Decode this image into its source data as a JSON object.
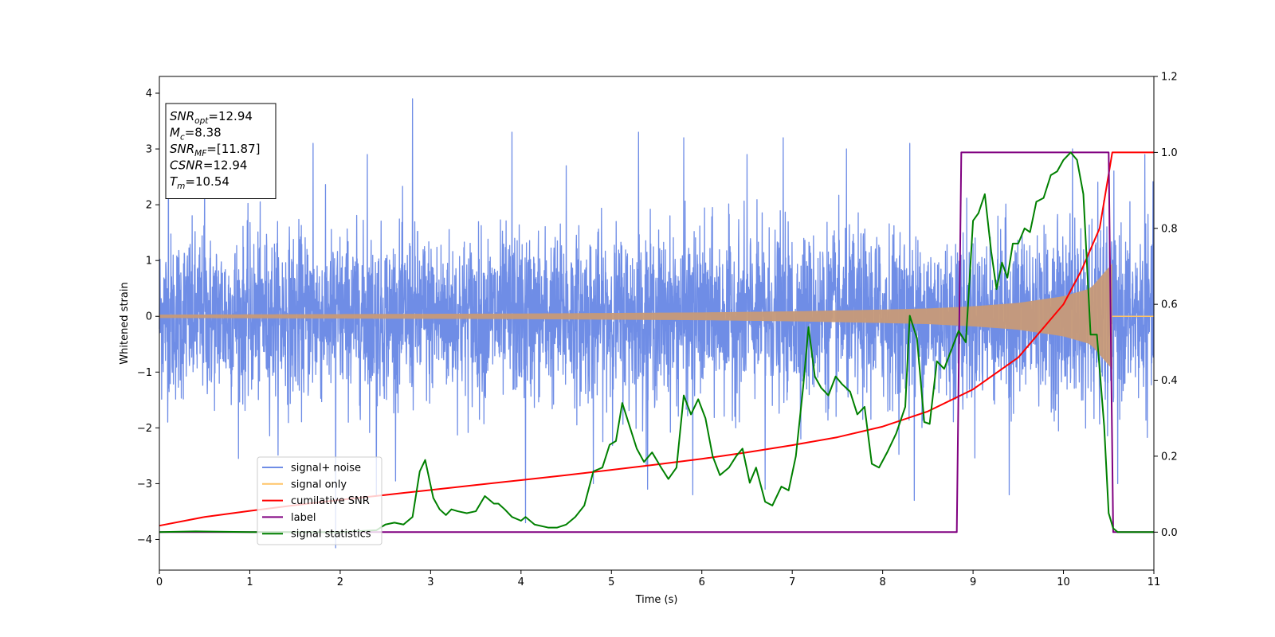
{
  "chart_data": {
    "type": "line",
    "title": "",
    "xlabel": "Time (s)",
    "ylabel": "Whitened strain",
    "xlim": [
      0,
      11
    ],
    "ylim": [
      -4.55,
      4.3
    ],
    "y2lim": [
      -0.1,
      1.2
    ],
    "xticks": [
      "0",
      "1",
      "2",
      "3",
      "4",
      "5",
      "6",
      "7",
      "8",
      "9",
      "10",
      "11"
    ],
    "yticks": [
      "4",
      "3",
      "2",
      "1",
      "0",
      "−1",
      "−2",
      "−3",
      "−4"
    ],
    "y2ticks": [
      "1.2",
      "1.0",
      "0.8",
      "0.6",
      "0.4",
      "0.2",
      "0.0"
    ],
    "grid": false,
    "legend_position": "lower-left",
    "annotation": {
      "lines": [
        {
          "base": "SNR",
          "sub": "opt",
          "value": "=12.94"
        },
        {
          "base": "M",
          "sub": "c",
          "value": "=8.38"
        },
        {
          "base": "SNR",
          "sub": "MF",
          "value": "=[11.87]"
        },
        {
          "base": "CSNR",
          "sub": "",
          "value": "=12.94"
        },
        {
          "base": "T",
          "sub": "m",
          "value": "=10.54"
        }
      ]
    },
    "series": [
      {
        "name": "signal+ noise",
        "color": "#6f8de6",
        "axis": "left",
        "kind": "noise",
        "envelope_typical": 1.9,
        "peaks": [
          [
            0.1,
            3.7
          ],
          [
            0.5,
            2.8
          ],
          [
            1.7,
            3.1
          ],
          [
            2.3,
            2.9
          ],
          [
            2.8,
            3.9
          ],
          [
            3.9,
            3.3
          ],
          [
            4.5,
            2.7
          ],
          [
            5.3,
            3.3
          ],
          [
            5.8,
            3.2
          ],
          [
            6.5,
            2.9
          ],
          [
            6.9,
            3.2
          ],
          [
            7.6,
            3.0
          ],
          [
            8.3,
            3.1
          ],
          [
            9.4,
            3.6
          ],
          [
            10.1,
            3.0
          ],
          [
            10.9,
            2.9
          ],
          [
            1.95,
            -4.15
          ],
          [
            2.4,
            -3.2
          ],
          [
            4.05,
            -3.7
          ],
          [
            4.8,
            -3.0
          ],
          [
            5.4,
            -3.1
          ],
          [
            5.9,
            -3.2
          ],
          [
            6.7,
            -3.1
          ],
          [
            8.35,
            -3.3
          ],
          [
            9.4,
            -3.2
          ],
          [
            10.6,
            -3.0
          ]
        ],
        "chirp_end": 10.54
      },
      {
        "name": "signal only",
        "color": "#ffc466",
        "fill": "#c79a78",
        "axis": "left",
        "kind": "chirp",
        "amplitude_x": [
          0,
          2,
          4,
          6,
          7,
          8,
          8.5,
          9,
          9.5,
          10,
          10.3,
          10.54
        ],
        "amplitude_y": [
          0.03,
          0.04,
          0.05,
          0.07,
          0.09,
          0.12,
          0.14,
          0.18,
          0.24,
          0.36,
          0.5,
          0.95
        ]
      },
      {
        "name": "cumilative SNR",
        "color": "#ff0000",
        "axis": "right",
        "x": [
          0,
          0.5,
          1,
          1.5,
          2,
          2.5,
          3,
          3.5,
          4,
          4.5,
          5,
          5.5,
          6,
          6.5,
          7,
          7.5,
          8,
          8.5,
          9,
          9.5,
          10,
          10.2,
          10.4,
          10.54,
          11
        ],
        "y": [
          0.017,
          0.04,
          0.056,
          0.071,
          0.085,
          0.098,
          0.111,
          0.124,
          0.137,
          0.15,
          0.164,
          0.178,
          0.193,
          0.21,
          0.229,
          0.25,
          0.278,
          0.318,
          0.376,
          0.46,
          0.6,
          0.69,
          0.8,
          1.0,
          1.0
        ]
      },
      {
        "name": "label",
        "color": "#800080",
        "axis": "right",
        "x": [
          0,
          8.82,
          8.87,
          10.5,
          10.55,
          11
        ],
        "y": [
          0,
          0,
          1,
          1,
          0,
          0
        ]
      },
      {
        "name": "signal statistics",
        "color": "#008000",
        "axis": "right",
        "x": [
          0,
          0.4,
          1,
          1.5,
          2,
          2.4,
          2.5,
          2.6,
          2.7,
          2.8,
          2.88,
          2.94,
          3.03,
          3.1,
          3.17,
          3.23,
          3.3,
          3.4,
          3.5,
          3.6,
          3.7,
          3.75,
          3.82,
          3.9,
          4.0,
          4.05,
          4.15,
          4.3,
          4.4,
          4.5,
          4.6,
          4.7,
          4.8,
          4.9,
          4.98,
          5.05,
          5.12,
          5.2,
          5.28,
          5.36,
          5.45,
          5.55,
          5.63,
          5.72,
          5.8,
          5.88,
          5.96,
          6.04,
          6.12,
          6.2,
          6.3,
          6.38,
          6.45,
          6.53,
          6.6,
          6.7,
          6.78,
          6.88,
          6.96,
          7.04,
          7.12,
          7.18,
          7.25,
          7.32,
          7.4,
          7.48,
          7.55,
          7.64,
          7.72,
          7.8,
          7.88,
          7.96,
          8.05,
          8.15,
          8.25,
          8.3,
          8.38,
          8.46,
          8.52,
          8.6,
          8.68,
          8.76,
          8.84,
          8.92,
          9.0,
          9.06,
          9.13,
          9.2,
          9.26,
          9.32,
          9.38,
          9.44,
          9.5,
          9.57,
          9.63,
          9.7,
          9.78,
          9.86,
          9.93,
          10.0,
          10.08,
          10.15,
          10.22,
          10.3,
          10.37,
          10.45,
          10.5,
          10.55,
          10.6,
          10.7,
          10.8,
          11
        ],
        "y": [
          0.0,
          0.002,
          0.0,
          0.0,
          0.0,
          0.005,
          0.02,
          0.025,
          0.02,
          0.04,
          0.16,
          0.19,
          0.09,
          0.06,
          0.045,
          0.06,
          0.055,
          0.05,
          0.055,
          0.095,
          0.075,
          0.075,
          0.06,
          0.04,
          0.03,
          0.04,
          0.02,
          0.012,
          0.012,
          0.02,
          0.04,
          0.07,
          0.16,
          0.17,
          0.23,
          0.24,
          0.34,
          0.28,
          0.22,
          0.185,
          0.21,
          0.17,
          0.14,
          0.17,
          0.36,
          0.31,
          0.35,
          0.3,
          0.2,
          0.15,
          0.17,
          0.2,
          0.22,
          0.13,
          0.17,
          0.08,
          0.07,
          0.12,
          0.11,
          0.2,
          0.38,
          0.54,
          0.41,
          0.38,
          0.36,
          0.41,
          0.39,
          0.37,
          0.31,
          0.33,
          0.18,
          0.17,
          0.21,
          0.26,
          0.33,
          0.57,
          0.51,
          0.29,
          0.285,
          0.45,
          0.43,
          0.48,
          0.53,
          0.5,
          0.82,
          0.84,
          0.89,
          0.74,
          0.64,
          0.71,
          0.67,
          0.76,
          0.76,
          0.8,
          0.79,
          0.87,
          0.88,
          0.94,
          0.95,
          0.98,
          1.0,
          0.98,
          0.89,
          0.52,
          0.52,
          0.28,
          0.05,
          0.01,
          0.0,
          0.0,
          0.0,
          0.0
        ]
      }
    ]
  }
}
